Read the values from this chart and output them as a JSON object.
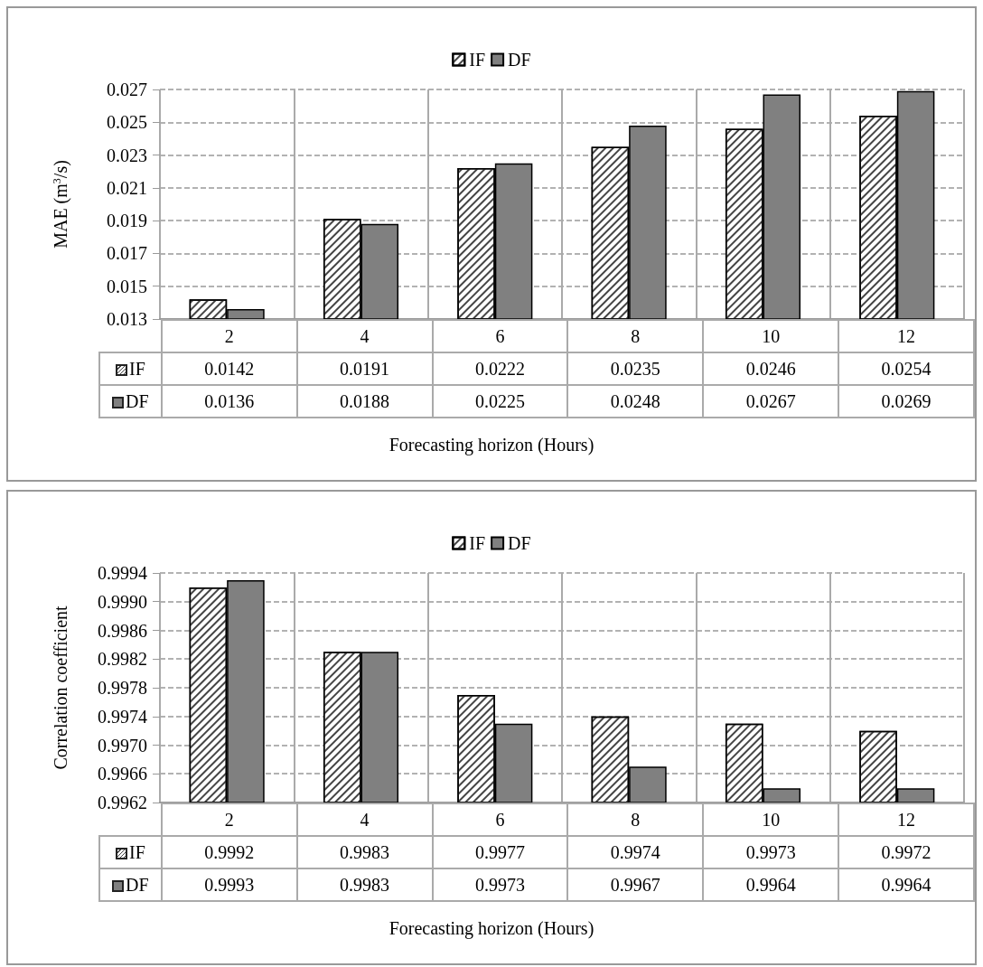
{
  "chart_data": [
    {
      "type": "bar",
      "categories": [
        "2",
        "4",
        "6",
        "8",
        "10",
        "12"
      ],
      "xlabel": "Forecasting horizon (Hours)",
      "ylabel": "MAE (m$^{3}$/s)",
      "series": [
        {
          "name": "IF",
          "color": "#ffffff",
          "values": [
            0.0142,
            0.0191,
            0.0222,
            0.0235,
            0.0246,
            0.0254
          ]
        },
        {
          "name": "DF",
          "color": "#808080",
          "values": [
            0.0136,
            0.0188,
            0.0225,
            0.0248,
            0.0267,
            0.0269
          ]
        }
      ],
      "ylim": [
        0.013,
        0.027
      ],
      "yticks": [
        0.013,
        0.015,
        0.017,
        0.019,
        0.021,
        0.023,
        0.025,
        0.027
      ],
      "grid": true,
      "legend": "top",
      "data_labels": true
    },
    {
      "type": "bar",
      "categories": [
        "2",
        "4",
        "6",
        "8",
        "10",
        "12"
      ],
      "xlabel": "Forecasting horizon (Hours)",
      "ylabel": "Correlation coefficient",
      "series": [
        {
          "name": "IF",
          "color": "#ffffff",
          "values": [
            0.9992,
            0.9983,
            0.9977,
            0.9974,
            0.9973,
            0.9972
          ]
        },
        {
          "name": "DF",
          "color": "#808080",
          "values": [
            0.9993,
            0.9983,
            0.9973,
            0.9967,
            0.9964,
            0.9964
          ]
        }
      ],
      "ylim": [
        0.9962,
        0.9994
      ],
      "yticks": [
        0.9962,
        0.9966,
        {
          "value": 0.997,
          "label": "0.9970"
        },
        0.9974,
        0.9978,
        0.9982,
        0.9986,
        {
          "value": 0.999,
          "label": "0.9990"
        },
        0.9994
      ],
      "grid": true,
      "legend": "top",
      "data_labels": true
    }
  ]
}
